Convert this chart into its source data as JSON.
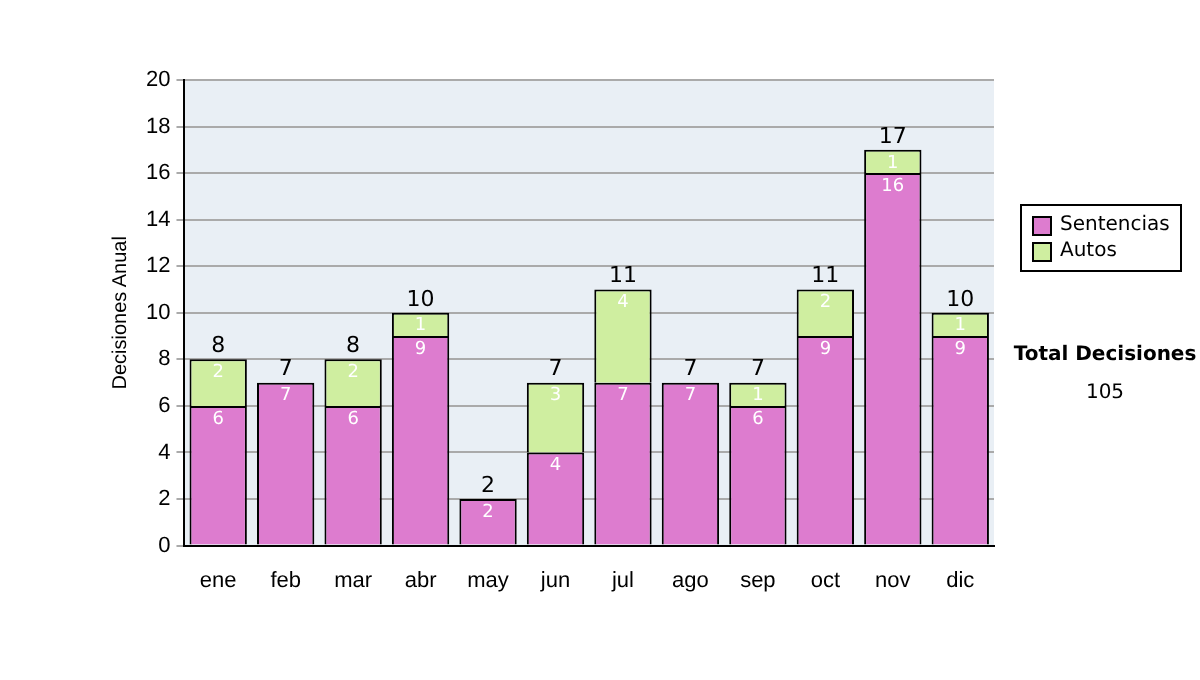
{
  "chart_data": {
    "type": "bar",
    "stacked": true,
    "ylabel": "Decisiones Anual",
    "categories": [
      "ene",
      "feb",
      "mar",
      "abr",
      "may",
      "jun",
      "jul",
      "ago",
      "sep",
      "oct",
      "nov",
      "dic"
    ],
    "series": [
      {
        "name": "Sentencias",
        "color": "#dd7ccf",
        "values": [
          6,
          7,
          6,
          9,
          2,
          4,
          7,
          7,
          6,
          9,
          16,
          9
        ],
        "value_labels": [
          "6",
          "7",
          "6",
          "9",
          "2",
          "4",
          "7",
          "7",
          "6",
          "9",
          "16",
          "9"
        ]
      },
      {
        "name": "Autos",
        "color": "#cfeea0",
        "values": [
          2,
          null,
          2,
          1,
          null,
          3,
          4,
          null,
          1,
          2,
          1,
          1
        ],
        "value_labels": [
          "2",
          null,
          "2",
          "1",
          null,
          "3",
          "4",
          null,
          "1",
          "2",
          "1",
          "1"
        ]
      }
    ],
    "totals": [
      "8",
      "7",
      "8",
      "10",
      "2",
      "7",
      "11",
      "7",
      "7",
      "11",
      "17",
      "10"
    ],
    "ylim": [
      0,
      20
    ],
    "yticks": [
      0,
      2,
      4,
      6,
      8,
      10,
      12,
      14,
      16,
      18,
      20
    ],
    "grid": "y",
    "legend": "right",
    "annotations": [
      "Total Decisiones",
      "105"
    ]
  }
}
